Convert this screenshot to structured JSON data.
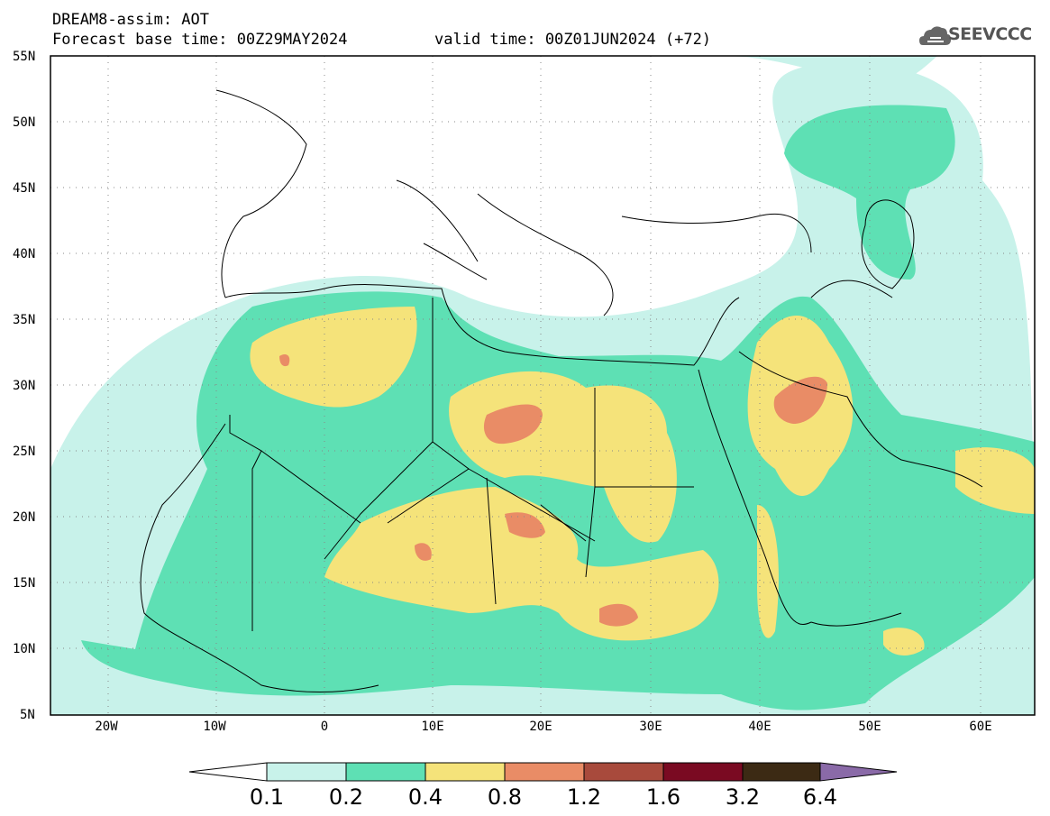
{
  "header": {
    "title": "DREAM8-assim: AOT",
    "base_time": "Forecast base time: 00Z29MAY2024",
    "valid_time": "valid time: 00Z01JUN2024 (+72)",
    "logo_text": "SEEVCCC"
  },
  "map": {
    "lat_labels": [
      "55N",
      "50N",
      "45N",
      "40N",
      "35N",
      "30N",
      "25N",
      "20N",
      "15N",
      "10N",
      "5N"
    ],
    "lon_labels": [
      "20W",
      "10W",
      "0",
      "10E",
      "20E",
      "30E",
      "40E",
      "50E",
      "60E"
    ],
    "lon_range": [
      -25,
      65
    ],
    "lat_range": [
      5,
      55
    ]
  },
  "colorbar": {
    "levels": [
      "0.1",
      "0.2",
      "0.4",
      "0.8",
      "1.2",
      "1.6",
      "3.2",
      "6.4"
    ],
    "colors": {
      "below": "#ffffff",
      "c1": "#c8f2ea",
      "c2": "#5ee0b4",
      "c3": "#f5e37a",
      "c4": "#e98c66",
      "c5": "#a84a3c",
      "c6": "#7a0a22",
      "c7": "#3c2a14",
      "above": "#8a6aa8"
    }
  }
}
